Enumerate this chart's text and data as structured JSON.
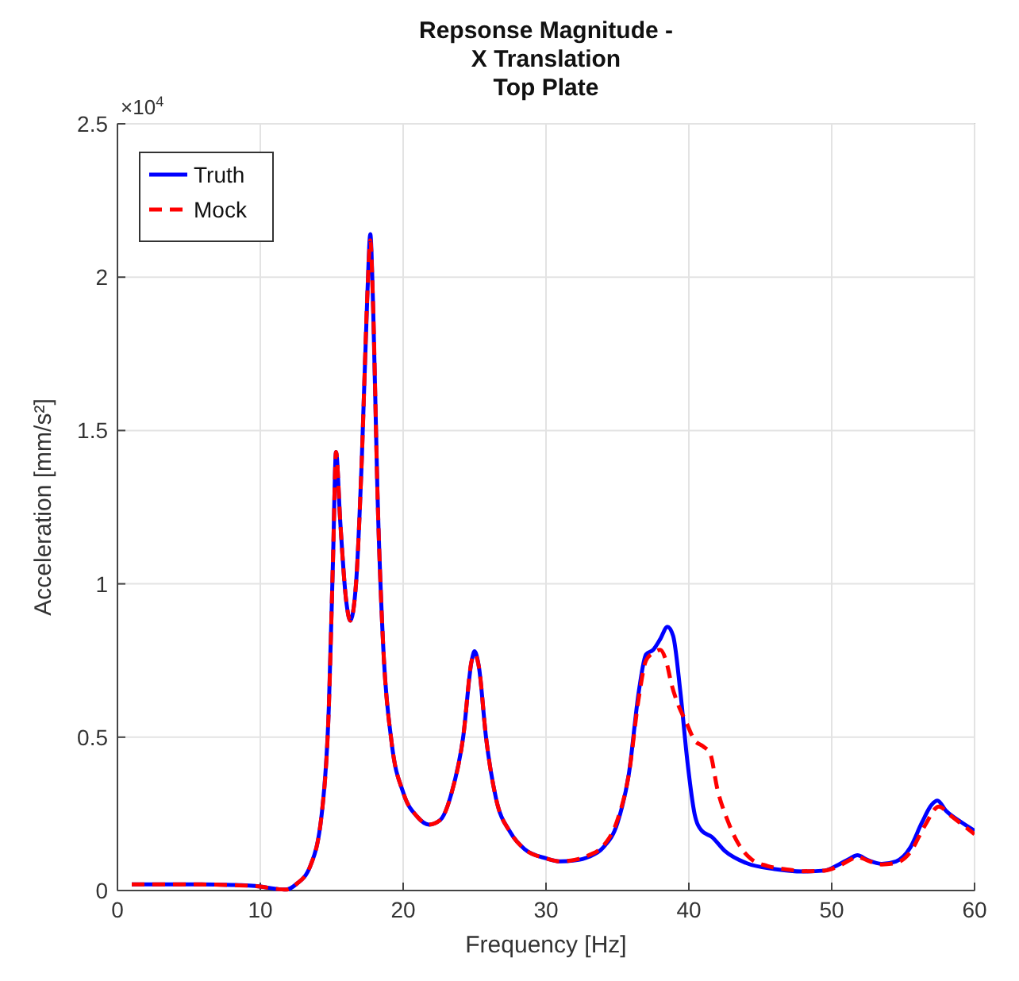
{
  "chart_data": {
    "type": "line",
    "title": "Repsonse Magnitude -\nX Translation\nTop Plate",
    "xlabel": "Frequency [Hz]",
    "ylabel": "Acceleration [mm/s²]",
    "annotations": [
      "×10$^{4}$"
    ],
    "xlim": [
      0,
      60
    ],
    "xticks": [
      0,
      10,
      20,
      30,
      40,
      50,
      60
    ],
    "ylim": [
      0,
      2.5
    ],
    "yticks": [
      0,
      0.5,
      1,
      1.5,
      2,
      2.5
    ],
    "grid": true,
    "legend": "top left",
    "marker": "none",
    "series": [
      {
        "name": "Truth",
        "color": "#0000ff",
        "line_style": "solid",
        "x": [
          1,
          5,
          8,
          10,
          11,
          11.8,
          12.5,
          13.5,
          14.3,
          14.8,
          15.1,
          15.3,
          15.6,
          16,
          16.3,
          16.7,
          17.1,
          17.5,
          17.7,
          17.9,
          18.2,
          18.6,
          19.2,
          20,
          21,
          21.8,
          22.6,
          23.4,
          24.2,
          24.8,
          25,
          25.3,
          25.8,
          26.5,
          27.5,
          28.5,
          30,
          31,
          32,
          33,
          34,
          35,
          35.8,
          36.5,
          37,
          37.5,
          38,
          38.5,
          38.9,
          39.4,
          39.9,
          40.4,
          40.9,
          41.6,
          42.5,
          44,
          46,
          48,
          49.5,
          50.5,
          51.3,
          51.8,
          52.5,
          53.5,
          54.5,
          55.5,
          56.3,
          57,
          57.4,
          58,
          59,
          60
        ],
        "values": [
          0.02,
          0.02,
          0.018,
          0.013,
          0.006,
          0.003,
          0.02,
          0.08,
          0.25,
          0.6,
          1.1,
          1.43,
          1.2,
          0.95,
          0.88,
          1,
          1.4,
          1.95,
          2.14,
          1.9,
          1.3,
          0.8,
          0.48,
          0.32,
          0.24,
          0.215,
          0.23,
          0.32,
          0.5,
          0.75,
          0.78,
          0.73,
          0.5,
          0.3,
          0.19,
          0.135,
          0.105,
          0.095,
          0.098,
          0.11,
          0.14,
          0.22,
          0.38,
          0.65,
          0.77,
          0.785,
          0.82,
          0.86,
          0.83,
          0.65,
          0.42,
          0.25,
          0.195,
          0.175,
          0.13,
          0.09,
          0.07,
          0.062,
          0.065,
          0.085,
          0.105,
          0.115,
          0.1,
          0.087,
          0.095,
          0.14,
          0.22,
          0.28,
          0.293,
          0.26,
          0.225,
          0.195
        ]
      },
      {
        "name": "Mock",
        "color": "#ff0000",
        "line_style": "dashed",
        "x": [
          1,
          5,
          8,
          10,
          11,
          11.8,
          12.5,
          13.5,
          14.3,
          14.8,
          15.1,
          15.3,
          15.6,
          16,
          16.3,
          16.7,
          17.1,
          17.5,
          17.7,
          17.9,
          18.2,
          18.6,
          19.2,
          20,
          21,
          21.8,
          22.6,
          23.4,
          24.2,
          24.8,
          25,
          25.3,
          25.8,
          26.5,
          27.5,
          28.5,
          30,
          31,
          32,
          33,
          34,
          35,
          35.8,
          36.5,
          37,
          37.5,
          38,
          38.4,
          38.8,
          39.3,
          39.8,
          40.4,
          41,
          41.5,
          42,
          42.7,
          43.5,
          44.3,
          45.5,
          47,
          48,
          49.5,
          50.5,
          51.3,
          51.8,
          52.5,
          53.5,
          54.5,
          55.5,
          56.5,
          57.5,
          58.3,
          59,
          60
        ],
        "values": [
          0.02,
          0.02,
          0.018,
          0.013,
          0.006,
          0.003,
          0.02,
          0.08,
          0.25,
          0.6,
          1.1,
          1.43,
          1.2,
          0.95,
          0.88,
          1,
          1.4,
          1.95,
          2.12,
          1.9,
          1.3,
          0.8,
          0.48,
          0.32,
          0.24,
          0.215,
          0.23,
          0.32,
          0.5,
          0.75,
          0.77,
          0.73,
          0.5,
          0.3,
          0.19,
          0.135,
          0.105,
          0.095,
          0.1,
          0.115,
          0.145,
          0.23,
          0.38,
          0.63,
          0.75,
          0.775,
          0.785,
          0.75,
          0.67,
          0.6,
          0.55,
          0.49,
          0.47,
          0.445,
          0.33,
          0.23,
          0.15,
          0.105,
          0.08,
          0.068,
          0.063,
          0.065,
          0.08,
          0.1,
          0.11,
          0.098,
          0.085,
          0.09,
          0.125,
          0.21,
          0.274,
          0.245,
          0.22,
          0.184
        ]
      }
    ]
  }
}
